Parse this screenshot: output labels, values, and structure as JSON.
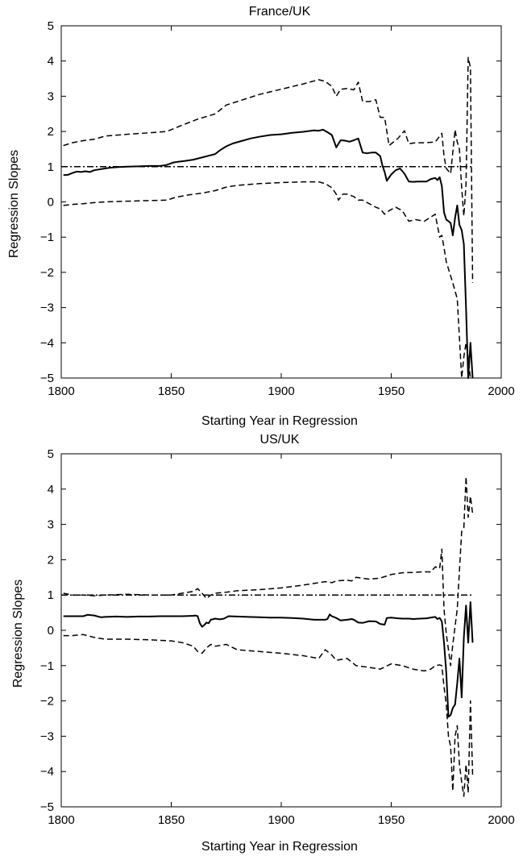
{
  "chart_data": [
    {
      "type": "line",
      "title": "France/UK",
      "xlabel": "Starting Year in Regression",
      "ylabel": "Regression Slopes",
      "xlim": [
        1800,
        2000
      ],
      "ylim": [
        -5,
        5
      ],
      "xticks": [
        1800,
        1850,
        1900,
        1950,
        2000
      ],
      "yticks": [
        5,
        4,
        3,
        2,
        1,
        0,
        -1,
        -2,
        -3,
        -4,
        -5
      ],
      "grid": false,
      "legend": "none",
      "series": [
        {
          "style": "dashdot",
          "x": [
            1800,
            1987
          ],
          "y": [
            1.0,
            1.0
          ]
        },
        {
          "style": "solid",
          "x": [
            1801,
            1803,
            1805,
            1807,
            1809,
            1811,
            1813,
            1815,
            1817,
            1819,
            1822,
            1826,
            1830,
            1835,
            1840,
            1845,
            1848,
            1851,
            1853,
            1856,
            1860,
            1865,
            1870,
            1872,
            1875,
            1878,
            1882,
            1886,
            1890,
            1895,
            1900,
            1905,
            1910,
            1915,
            1917,
            1919,
            1921,
            1923,
            1925,
            1927,
            1929,
            1931,
            1933,
            1935,
            1937,
            1939,
            1941,
            1943,
            1945,
            1946,
            1947,
            1948,
            1950,
            1952,
            1954,
            1956,
            1958,
            1960,
            1962,
            1964,
            1966,
            1968,
            1970,
            1971,
            1972,
            1973,
            1974,
            1975,
            1976,
            1977,
            1978,
            1979,
            1980,
            1981,
            1982,
            1983,
            1984,
            1985,
            1986,
            1987
          ],
          "y": [
            0.76,
            0.77,
            0.82,
            0.86,
            0.85,
            0.87,
            0.85,
            0.9,
            0.92,
            0.94,
            0.97,
            0.99,
            1.0,
            1.01,
            1.02,
            1.02,
            1.05,
            1.12,
            1.14,
            1.16,
            1.2,
            1.28,
            1.36,
            1.46,
            1.58,
            1.66,
            1.73,
            1.8,
            1.85,
            1.9,
            1.92,
            1.96,
            1.99,
            2.03,
            2.02,
            2.05,
            1.98,
            1.9,
            1.55,
            1.75,
            1.74,
            1.71,
            1.75,
            1.8,
            1.4,
            1.38,
            1.4,
            1.4,
            1.3,
            1.03,
            0.85,
            0.6,
            0.78,
            0.9,
            0.95,
            0.8,
            0.58,
            0.57,
            0.58,
            0.58,
            0.58,
            0.65,
            0.68,
            0.62,
            0.7,
            0.45,
            -0.3,
            -0.5,
            -0.55,
            -0.6,
            -0.95,
            -0.45,
            -0.1,
            -0.65,
            -0.8,
            -1.2,
            -3.0,
            -5.0,
            -4.0,
            -5.0
          ]
        },
        {
          "style": "dashed",
          "x": [
            1801,
            1805,
            1810,
            1815,
            1820,
            1830,
            1840,
            1848,
            1855,
            1862,
            1870,
            1875,
            1880,
            1890,
            1900,
            1910,
            1917,
            1920,
            1923,
            1925,
            1927,
            1930,
            1933,
            1935,
            1937,
            1940,
            1943,
            1945,
            1947,
            1949,
            1953,
            1956,
            1958,
            1961,
            1965,
            1970,
            1973,
            1974,
            1975,
            1977,
            1979,
            1980,
            1981,
            1982,
            1983,
            1984,
            1985,
            1986,
            1987
          ],
          "y": [
            1.6,
            1.68,
            1.74,
            1.78,
            1.87,
            1.92,
            1.96,
            2.0,
            2.18,
            2.35,
            2.5,
            2.75,
            2.85,
            3.05,
            3.2,
            3.35,
            3.47,
            3.42,
            3.28,
            3.0,
            3.2,
            3.22,
            3.18,
            3.4,
            2.85,
            2.85,
            2.9,
            2.4,
            2.4,
            1.6,
            1.8,
            2.02,
            1.65,
            1.68,
            1.68,
            1.7,
            1.95,
            1.3,
            0.95,
            0.8,
            2.05,
            1.7,
            1.5,
            0.4,
            -0.4,
            0.5,
            4.1,
            3.8,
            -2.3
          ]
        },
        {
          "style": "dashed",
          "x": [
            1801,
            1805,
            1810,
            1815,
            1820,
            1830,
            1840,
            1848,
            1852,
            1858,
            1864,
            1870,
            1875,
            1880,
            1890,
            1900,
            1910,
            1917,
            1920,
            1923,
            1925,
            1926,
            1928,
            1930,
            1933,
            1935,
            1937,
            1940,
            1943,
            1945,
            1947,
            1949,
            1952,
            1955,
            1958,
            1961,
            1965,
            1970,
            1972,
            1973,
            1974,
            1975,
            1977,
            1978,
            1980,
            1982,
            1983,
            1984,
            1985,
            1986
          ],
          "y": [
            -0.1,
            -0.07,
            -0.05,
            -0.02,
            0.0,
            0.02,
            0.04,
            0.05,
            0.13,
            0.2,
            0.25,
            0.32,
            0.42,
            0.47,
            0.52,
            0.55,
            0.57,
            0.57,
            0.52,
            0.4,
            0.22,
            0.05,
            0.22,
            0.22,
            0.15,
            0.05,
            0.05,
            -0.05,
            -0.15,
            -0.2,
            -0.35,
            -0.25,
            -0.15,
            -0.25,
            -0.55,
            -0.5,
            -0.55,
            -0.35,
            -1.0,
            -0.95,
            -1.3,
            -1.7,
            -2.1,
            -2.3,
            -2.75,
            -5.0,
            -4.4,
            -4.0,
            -4.45,
            -5.0
          ]
        }
      ]
    },
    {
      "type": "line",
      "title": "US/UK",
      "xlabel": "Starting Year in Regression",
      "ylabel": "Regression Slopes",
      "xlim": [
        1800,
        2000
      ],
      "ylim": [
        -5,
        5
      ],
      "xticks": [
        1800,
        1850,
        1900,
        1950,
        2000
      ],
      "yticks": [
        5,
        4,
        3,
        2,
        1,
        0,
        -1,
        -2,
        -3,
        -4,
        -5
      ],
      "grid": false,
      "legend": "none",
      "series": [
        {
          "style": "dashdot",
          "x": [
            1800,
            1987
          ],
          "y": [
            1.0,
            1.0
          ]
        },
        {
          "style": "solid",
          "x": [
            1801,
            1805,
            1810,
            1812,
            1815,
            1818,
            1820,
            1825,
            1830,
            1835,
            1840,
            1845,
            1850,
            1855,
            1860,
            1861,
            1862,
            1863,
            1864,
            1865,
            1866,
            1867,
            1868,
            1870,
            1872,
            1874,
            1876,
            1880,
            1885,
            1890,
            1895,
            1900,
            1905,
            1910,
            1915,
            1918,
            1920,
            1921,
            1922,
            1923,
            1925,
            1927,
            1930,
            1932,
            1933,
            1935,
            1937,
            1940,
            1943,
            1945,
            1947,
            1948,
            1950,
            1953,
            1955,
            1958,
            1960,
            1963,
            1966,
            1969,
            1970,
            1971,
            1972,
            1973,
            1974,
            1975,
            1976,
            1977,
            1978,
            1979,
            1980,
            1981,
            1982,
            1983,
            1984,
            1985,
            1986,
            1987
          ],
          "y": [
            0.4,
            0.4,
            0.4,
            0.44,
            0.42,
            0.37,
            0.38,
            0.39,
            0.38,
            0.39,
            0.39,
            0.4,
            0.4,
            0.4,
            0.41,
            0.42,
            0.4,
            0.2,
            0.1,
            0.15,
            0.22,
            0.2,
            0.3,
            0.33,
            0.31,
            0.33,
            0.4,
            0.39,
            0.38,
            0.37,
            0.36,
            0.36,
            0.35,
            0.33,
            0.3,
            0.3,
            0.3,
            0.32,
            0.45,
            0.4,
            0.35,
            0.28,
            0.3,
            0.32,
            0.3,
            0.22,
            0.21,
            0.26,
            0.25,
            0.18,
            0.16,
            0.35,
            0.36,
            0.34,
            0.33,
            0.33,
            0.32,
            0.33,
            0.34,
            0.37,
            0.38,
            0.32,
            0.35,
            0.25,
            -0.35,
            -1.2,
            -2.45,
            -2.4,
            -2.2,
            -2.1,
            -1.5,
            -0.8,
            -1.9,
            -0.2,
            0.7,
            -0.35,
            0.8,
            -0.35
          ]
        },
        {
          "style": "dashed",
          "x": [
            1801,
            1805,
            1810,
            1815,
            1820,
            1830,
            1840,
            1850,
            1855,
            1860,
            1862,
            1864,
            1866,
            1868,
            1870,
            1875,
            1880,
            1890,
            1900,
            1910,
            1917,
            1920,
            1923,
            1925,
            1930,
            1932,
            1934,
            1940,
            1945,
            1950,
            1955,
            1960,
            1965,
            1968,
            1970,
            1972,
            1973,
            1974,
            1975,
            1977,
            1978,
            1980,
            1982,
            1983,
            1984,
            1985,
            1986,
            1987
          ],
          "y": [
            1.05,
            1.0,
            1.0,
            0.98,
            1.0,
            1.02,
            1.0,
            1.0,
            1.05,
            1.1,
            1.18,
            1.05,
            0.9,
            1.0,
            1.05,
            1.08,
            1.12,
            1.15,
            1.2,
            1.28,
            1.35,
            1.38,
            1.35,
            1.4,
            1.42,
            1.4,
            1.5,
            1.45,
            1.48,
            1.58,
            1.63,
            1.64,
            1.66,
            1.65,
            1.8,
            1.75,
            2.3,
            0.6,
            -0.1,
            -1.0,
            -0.4,
            0.6,
            2.8,
            2.9,
            4.35,
            3.2,
            3.8,
            3.3
          ]
        },
        {
          "style": "dashed",
          "x": [
            1801,
            1805,
            1810,
            1815,
            1820,
            1830,
            1840,
            1850,
            1855,
            1860,
            1862,
            1864,
            1866,
            1868,
            1870,
            1875,
            1880,
            1890,
            1900,
            1910,
            1917,
            1920,
            1923,
            1925,
            1930,
            1932,
            1934,
            1940,
            1945,
            1950,
            1955,
            1960,
            1965,
            1968,
            1970,
            1972,
            1973,
            1974,
            1975,
            1976,
            1977,
            1978,
            1979,
            1980,
            1981,
            1982,
            1983,
            1984,
            1985,
            1986,
            1987
          ],
          "y": [
            -0.15,
            -0.15,
            -0.12,
            -0.2,
            -0.25,
            -0.25,
            -0.27,
            -0.3,
            -0.35,
            -0.45,
            -0.6,
            -0.65,
            -0.5,
            -0.4,
            -0.45,
            -0.4,
            -0.55,
            -0.6,
            -0.65,
            -0.72,
            -0.8,
            -0.55,
            -0.7,
            -0.85,
            -0.8,
            -0.9,
            -1.0,
            -1.05,
            -1.1,
            -0.95,
            -1.0,
            -1.1,
            -1.15,
            -1.1,
            -1.0,
            -0.98,
            -1.0,
            -1.6,
            -2.1,
            -3.0,
            -3.3,
            -4.55,
            -3.0,
            -2.7,
            -3.8,
            -4.3,
            -4.7,
            -3.8,
            -4.6,
            -2.0,
            -4.1
          ]
        }
      ]
    }
  ]
}
